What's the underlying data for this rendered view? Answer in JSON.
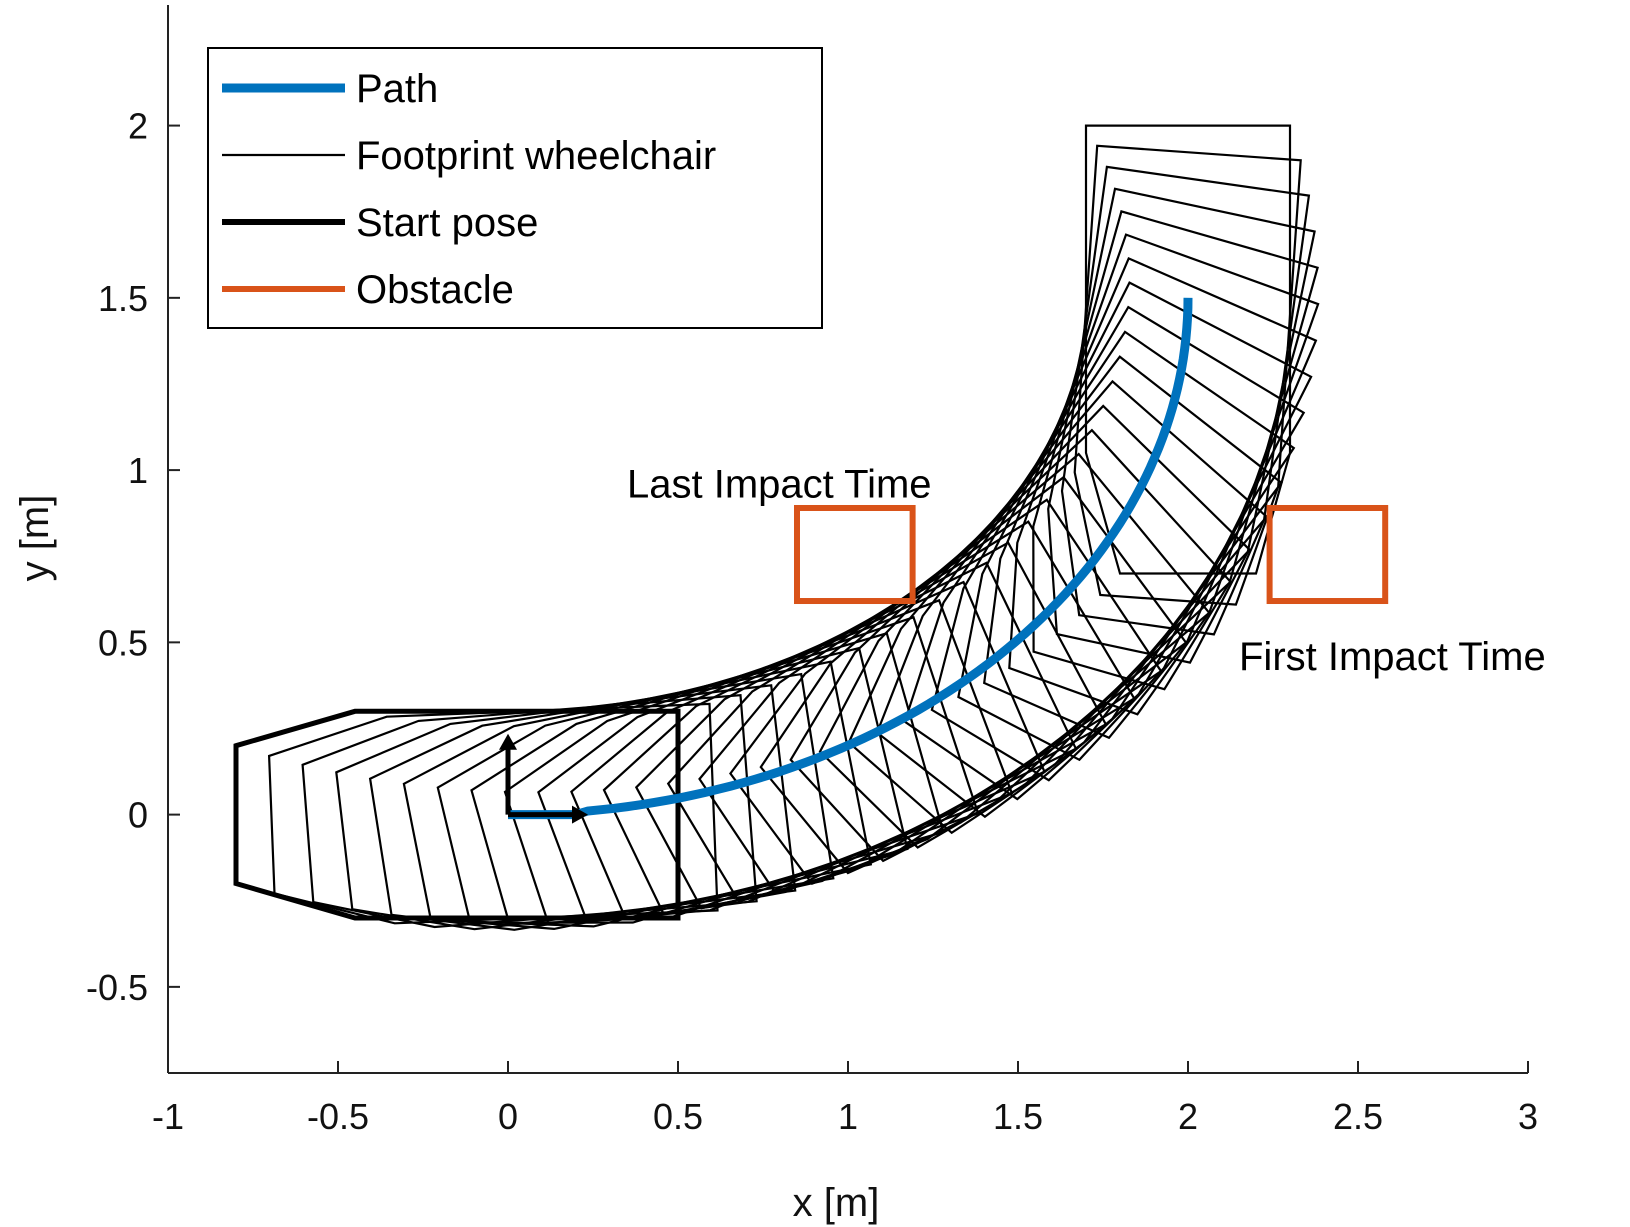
{
  "chart_data": {
    "type": "line",
    "title": "",
    "xlabel": "x [m]",
    "ylabel": "y [m]",
    "xlim": [
      -1,
      3
    ],
    "ylim": [
      -0.75,
      2.35
    ],
    "xticks": [
      -1,
      -0.5,
      0,
      0.5,
      1,
      1.5,
      2,
      2.5,
      3
    ],
    "xtick_labels": [
      "-1",
      "-0.5",
      "0",
      "0.5",
      "1",
      "1.5",
      "2",
      "2.5",
      "3"
    ],
    "yticks": [
      -0.5,
      0,
      0.5,
      1,
      1.5,
      2
    ],
    "ytick_labels": [
      "-0.5",
      "0",
      "0.5",
      "1",
      "1.5",
      "2"
    ],
    "grid": false,
    "legend_position": "top-left",
    "path": {
      "name": "Path",
      "color": "#0072BD",
      "center": [
        0.0,
        1.5
      ],
      "radius_x": 2.0,
      "radius_y": 1.5,
      "straight": [
        [
          0.0,
          0.0
        ],
        [
          0.2,
          0.0
        ]
      ],
      "arc_end": [
        2.0,
        1.5
      ]
    },
    "footprint": {
      "name": "Footprint wheelchair",
      "color": "#000000",
      "vertices_local": [
        [
          -0.8,
          0.2
        ],
        [
          -0.45,
          0.3
        ],
        [
          0.5,
          0.3
        ],
        [
          0.5,
          -0.3
        ],
        [
          -0.45,
          -0.3
        ],
        [
          -0.8,
          -0.2
        ]
      ],
      "count": 30
    },
    "start_pose": {
      "name": "Start pose",
      "color": "#000000",
      "origin": [
        0.0,
        0.0
      ],
      "x_arrow_end": [
        0.2,
        0.0
      ],
      "y_arrow_end": [
        0.0,
        0.2
      ]
    },
    "obstacles": {
      "name": "Obstacle",
      "color": "#D95319",
      "items": [
        {
          "x": [
            0.85,
            1.19
          ],
          "y": [
            0.62,
            0.89
          ]
        },
        {
          "x": [
            2.24,
            2.58
          ],
          "y": [
            0.62,
            0.89
          ]
        }
      ]
    },
    "legend": [
      {
        "label": "Path",
        "color": "#0072BD",
        "style": "thick"
      },
      {
        "label": "Footprint wheelchair",
        "color": "#000000",
        "style": "thin"
      },
      {
        "label": "Start pose",
        "color": "#000000",
        "style": "medium"
      },
      {
        "label": "Obstacle",
        "color": "#D95319",
        "style": "medium"
      }
    ],
    "annotations": [
      {
        "text": "Last Impact Time",
        "x": 0.35,
        "y": 0.92
      },
      {
        "text": "First Impact Time",
        "x": 2.15,
        "y": 0.42
      }
    ]
  }
}
